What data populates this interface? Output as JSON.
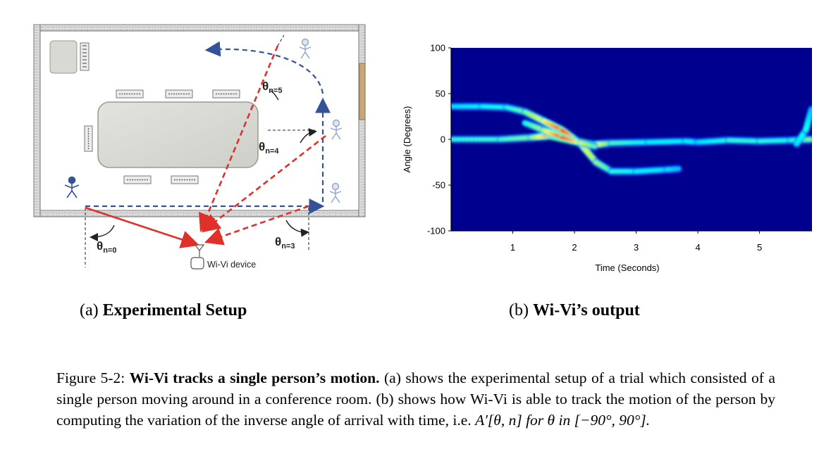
{
  "setup": {
    "device_label": "Wi-Vi device",
    "angles": [
      {
        "base": "θ",
        "sub": "n=0"
      },
      {
        "base": "θ",
        "sub": "n=3"
      },
      {
        "base": "θ",
        "sub": "n=4"
      },
      {
        "base": "θ",
        "sub": "n=5"
      }
    ]
  },
  "chart_data": {
    "type": "heatmap",
    "xlabel": "Time (Seconds)",
    "ylabel": "Angle (Degrees)",
    "xlim": [
      0,
      5.85
    ],
    "ylim": [
      -100,
      100
    ],
    "xticks": [
      "1",
      "2",
      "3",
      "4",
      "5"
    ],
    "xtick_values": [
      1,
      2,
      3,
      4,
      5
    ],
    "yticks": [
      "100",
      "50",
      "0",
      "-50",
      "-100"
    ],
    "ytick_values": [
      100,
      50,
      0,
      -50,
      -100
    ],
    "colormap": "jet",
    "background_color": "#00008f",
    "tracks": [
      {
        "points": [
          [
            0,
            0
          ],
          [
            0.8,
            0
          ],
          [
            1.3,
            2
          ],
          [
            1.6,
            4
          ],
          [
            2.0,
            -2
          ],
          [
            2.3,
            -6
          ],
          [
            2.6,
            -4
          ],
          [
            3.2,
            -3
          ],
          [
            3.8,
            -2
          ],
          [
            4.0,
            -3
          ],
          [
            4.5,
            -1
          ],
          [
            5.0,
            -2
          ],
          [
            5.5,
            -1
          ],
          [
            5.85,
            0
          ]
        ],
        "intensity": [
          0.42,
          0.44,
          0.5,
          0.75,
          0.95,
          0.7,
          0.45,
          0.38,
          0.38,
          0.35,
          0.42,
          0.42,
          0.4,
          0.5
        ]
      },
      {
        "points": [
          [
            0,
            36
          ],
          [
            0.5,
            36
          ],
          [
            0.9,
            35
          ],
          [
            1.2,
            30
          ],
          [
            1.5,
            20
          ],
          [
            1.8,
            10
          ],
          [
            2.1,
            -5
          ],
          [
            2.35,
            -25
          ],
          [
            2.6,
            -35
          ],
          [
            3.0,
            -35
          ],
          [
            3.5,
            -33
          ],
          [
            3.7,
            -32
          ]
        ],
        "intensity": [
          0.35,
          0.38,
          0.4,
          0.48,
          0.62,
          0.8,
          0.62,
          0.52,
          0.42,
          0.38,
          0.36,
          0.32
        ]
      },
      {
        "points": [
          [
            1.2,
            18
          ],
          [
            1.5,
            10
          ],
          [
            1.8,
            2
          ],
          [
            2.1,
            -4
          ],
          [
            2.35,
            -8
          ]
        ],
        "intensity": [
          0.4,
          0.55,
          0.82,
          0.6,
          0.45
        ]
      },
      {
        "points": [
          [
            5.6,
            -5
          ],
          [
            5.75,
            10
          ],
          [
            5.85,
            35
          ]
        ],
        "intensity": [
          0.35,
          0.4,
          0.3
        ]
      }
    ]
  },
  "captions": {
    "a_label": "(a)",
    "a_title": "Experimental Setup",
    "b_label": "(b)",
    "b_title": "Wi-Vi’s output"
  },
  "figure_caption": {
    "prefix": "Figure 5-2: ",
    "bold": "Wi-Vi tracks a single person’s motion.",
    "text": " (a) shows the experimental setup of a trial which consisted of a single person moving around in a conference room. (b) shows how Wi-Vi is able to track the motion of the person by computing the variation of the inverse angle of arrival with time, i.e. ",
    "math": "A′[θ, n] for θ in [−90°, 90°]."
  }
}
